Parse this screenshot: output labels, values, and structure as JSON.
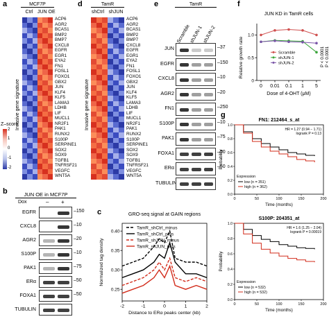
{
  "figure": {
    "panel_a": {
      "label": "a",
      "title": "MCF7P",
      "columns": [
        "Ctrl",
        "JUN OE"
      ],
      "side_label": "Invasive gene signature",
      "legend_title": "Z–score",
      "legend_ticks": [
        "2",
        "1",
        "0",
        "-1",
        "-2"
      ],
      "genes": [
        "ACP6",
        "AGR2",
        "BCAS1",
        "BMP2",
        "BMP7",
        "CXCL8",
        "EGFR",
        "EGR1",
        "EYA2",
        "FN1",
        "FOSL1",
        "FOXO1",
        "GBX2",
        "JUN",
        "KLF4",
        "KLF5",
        "LAMA3",
        "LDHB",
        "LIF",
        "MUCL1",
        "NR2F1",
        "PAK1",
        "RUNX2",
        "S100P",
        "SERPINE1",
        "SOX2",
        "SOX9",
        "TGFB1",
        "TNFRSF21",
        "VEGFC",
        "WNT5A"
      ]
    },
    "panel_d": {
      "label": "d",
      "title": "TamR",
      "columns": [
        "shCtrl",
        "shJUN"
      ],
      "side_label": "Invasive gene signature",
      "genes": [
        "ACP6",
        "AGR2",
        "BCAS1",
        "BMP2",
        "BMP7",
        "CXCL8",
        "EGFR",
        "EGR1",
        "EYA2",
        "FN1",
        "FOSL1",
        "FOXO1",
        "GBX2",
        "JUN",
        "KLF4",
        "KLF5",
        "LAMA3",
        "LDHB",
        "LIF",
        "MUCL1",
        "NR2F1",
        "PAK1",
        "RUNX2",
        "S100P",
        "SERPINE1",
        "SOX2",
        "SOX9",
        "TGFB1",
        "TNFRSF21",
        "VEGFC",
        "WNT5A"
      ]
    },
    "panel_e": {
      "label": "e",
      "title": "TamR",
      "lanes": [
        "Scramble",
        "shJUN-1",
        "shJUN-2"
      ],
      "rows": [
        {
          "name": "JUN",
          "mw": "37"
        },
        {
          "name": "EGFR",
          "mw": "150"
        },
        {
          "name": "CXCL8",
          "mw": "10"
        },
        {
          "name": "AGR2",
          "mw": "20"
        },
        {
          "name": "FN1",
          "mw": "250"
        },
        {
          "name": "S100P",
          "mw": "10"
        },
        {
          "name": "PAK1",
          "mw": "75"
        },
        {
          "name": "FOXA1",
          "mw": "50"
        },
        {
          "name": "ERα",
          "mw": "50"
        },
        {
          "name": "TUBULIN",
          "mw": ""
        }
      ]
    },
    "panel_b": {
      "label": "b",
      "title": "JUN OE in MCF7P",
      "dox_label": "Dox",
      "dox_marks": [
        "–",
        "+"
      ],
      "rows": [
        {
          "name": "EGFR",
          "mw": "150"
        },
        {
          "name": "CXCL8",
          "mw": "10"
        },
        {
          "name": "AGR2",
          "mw": "20"
        },
        {
          "name": "S100P",
          "mw": "10"
        },
        {
          "name": "PAK1",
          "mw": "75"
        },
        {
          "name": "ERα",
          "mw": "50"
        },
        {
          "name": "FOXA1",
          "mw": "50"
        },
        {
          "name": "TUBULIN",
          "mw": ""
        }
      ]
    },
    "panel_c": {
      "label": "c"
    },
    "panel_f": {
      "label": "f"
    },
    "panel_g": {
      "label": "g",
      "top_title": "FN1: 212464_s_at",
      "top_hr": "HR = 1.27 (0.94 − 1.71)",
      "top_logrank": "logrank P = 0.13",
      "top_legend_title": "Expression",
      "top_low": "low (n = 351)",
      "top_high": "high (n = 362)",
      "bottom_title": "S100P: 204351_at",
      "bottom_hr": "HR = 1.6 (1.25 − 2.04)",
      "bottom_logrank": "logrank P = 0.00019",
      "bottom_legend_title": "Expression",
      "bottom_low": "low (n = 532)",
      "bottom_high": "high (n = 532)",
      "xlabel": "Time (months)",
      "ylabel": "Probability"
    }
  },
  "chart_data": [
    {
      "type": "line",
      "title": "GRO-seq signal at GAIN regions",
      "xlabel": "Distance to ERα peaks center (kb)",
      "ylabel": "Normalized tag density",
      "xlim": [
        -2,
        2
      ],
      "ylim": [
        0.22,
        0.42
      ],
      "x_ticks": [
        "-2",
        "-1",
        "0",
        "1",
        "2"
      ],
      "y_ticks": [
        "0.25",
        "0.30",
        "0.35",
        "0.40"
      ],
      "x": [
        -2.0,
        -1.5,
        -1.0,
        -0.5,
        -0.25,
        0.0,
        0.25,
        0.5,
        1.0,
        1.5,
        2.0
      ],
      "series": [
        {
          "name": "TamR_shCtrl_minus",
          "color": "#000000",
          "dash": "4,2",
          "values": [
            0.31,
            0.32,
            0.33,
            0.36,
            0.38,
            0.37,
            0.4,
            0.33,
            0.32,
            0.32,
            0.31
          ]
        },
        {
          "name": "TamR_shCtrl_plus",
          "color": "#000000",
          "dash": "",
          "values": [
            0.28,
            0.29,
            0.3,
            0.32,
            0.34,
            0.33,
            0.37,
            0.32,
            0.29,
            0.29,
            0.28
          ]
        },
        {
          "name": "TamR_shJUN_minus",
          "color": "#d22b1a",
          "dash": "4,2",
          "values": [
            0.26,
            0.27,
            0.28,
            0.3,
            0.32,
            0.3,
            0.33,
            0.28,
            0.27,
            0.28,
            0.27
          ]
        },
        {
          "name": "TamR_shJUN_plus",
          "color": "#d22b1a",
          "dash": "",
          "values": [
            0.24,
            0.25,
            0.26,
            0.28,
            0.3,
            0.28,
            0.31,
            0.26,
            0.25,
            0.26,
            0.25
          ]
        }
      ]
    },
    {
      "type": "line",
      "title": "JUN KD in TamR cells",
      "xlabel": "Dose of 4-OHT (μM)",
      "ylabel": "Relative growth rate",
      "x_ticks": [
        "0",
        "0.01",
        "0.1",
        "1",
        "5"
      ],
      "ylim": [
        0,
        1.25
      ],
      "y_ticks": [
        "0",
        "0.5",
        "1.0"
      ],
      "categories": [
        "0",
        "0.01",
        "0.1",
        "1",
        "5"
      ],
      "series": [
        {
          "name": "Scramble",
          "color": "#d0504f",
          "values": [
            1.0,
            1.1,
            1.12,
            1.1,
            1.0
          ]
        },
        {
          "name": "shJUN-1",
          "color": "#3aa53a",
          "values": [
            0.85,
            0.88,
            0.87,
            0.86,
            0.62
          ]
        },
        {
          "name": "shJUN-2",
          "color": "#7a55a8",
          "values": [
            0.85,
            0.87,
            0.85,
            0.84,
            0.82
          ]
        }
      ],
      "annotations": [
        "P < 0.0001",
        "P < 0.0001"
      ]
    },
    {
      "type": "line",
      "title": "FN1: 212464_s_at",
      "xlabel": "Time (months)",
      "ylabel": "Probability",
      "xlim": [
        0,
        200
      ],
      "ylim": [
        0,
        1
      ],
      "x_ticks": [
        "0",
        "50",
        "100",
        "150",
        "200"
      ],
      "y_ticks": [
        "0.0",
        "0.2",
        "0.4",
        "0.6",
        "0.8",
        "1.0"
      ],
      "series": [
        {
          "name": "low (n = 351)",
          "color": "#000000",
          "x": [
            0,
            20,
            40,
            60,
            80,
            100,
            120,
            140,
            160,
            180
          ],
          "values": [
            1.0,
            0.9,
            0.8,
            0.73,
            0.68,
            0.64,
            0.6,
            0.58,
            0.56,
            0.55
          ]
        },
        {
          "name": "high (n = 362)",
          "color": "#d22b1a",
          "x": [
            0,
            20,
            40,
            60,
            80,
            100,
            120,
            140,
            160,
            180
          ],
          "values": [
            1.0,
            0.88,
            0.76,
            0.68,
            0.62,
            0.58,
            0.54,
            0.5,
            0.48,
            0.46
          ]
        }
      ]
    },
    {
      "type": "line",
      "title": "S100P: 204351_at",
      "xlabel": "Time (months)",
      "ylabel": "Probability",
      "xlim": [
        0,
        200
      ],
      "ylim": [
        0,
        1
      ],
      "x_ticks": [
        "0",
        "50",
        "100",
        "150",
        "200"
      ],
      "y_ticks": [
        "0.0",
        "0.2",
        "0.4",
        "0.6",
        "0.8",
        "1.0"
      ],
      "series": [
        {
          "name": "low (n = 532)",
          "color": "#000000",
          "x": [
            0,
            20,
            40,
            60,
            80,
            100,
            120,
            140,
            160,
            180
          ],
          "values": [
            1.0,
            0.92,
            0.84,
            0.79,
            0.76,
            0.72,
            0.7,
            0.68,
            0.67,
            0.66
          ]
        },
        {
          "name": "high (n = 532)",
          "color": "#d22b1a",
          "x": [
            0,
            20,
            40,
            60,
            80,
            100,
            120,
            140,
            160,
            180
          ],
          "values": [
            1.0,
            0.86,
            0.74,
            0.66,
            0.61,
            0.57,
            0.54,
            0.52,
            0.5,
            0.49
          ]
        }
      ]
    }
  ]
}
